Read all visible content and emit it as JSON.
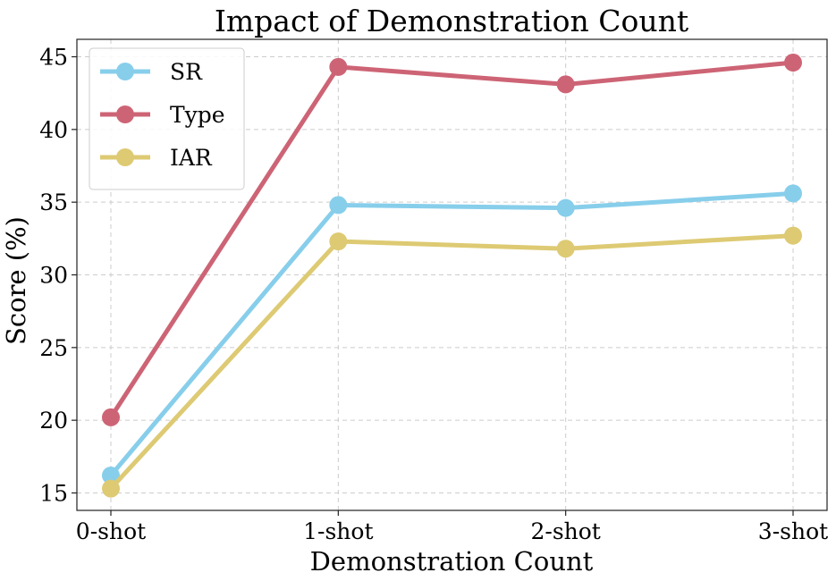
{
  "chart_data": {
    "type": "line",
    "title": "Impact of Demonstration Count",
    "xlabel": "Demonstration Count",
    "ylabel": "Score (%)",
    "categories": [
      "0-shot",
      "1-shot",
      "2-shot",
      "3-shot"
    ],
    "ylim": [
      13.8,
      46.2
    ],
    "yticks": [
      15,
      20,
      25,
      30,
      35,
      40,
      45
    ],
    "grid": true,
    "legend_position": "top-left",
    "series": [
      {
        "name": "SR",
        "color": "#87ceeb",
        "values": [
          16.2,
          34.8,
          34.6,
          35.6
        ]
      },
      {
        "name": "Type",
        "color": "#cd6475",
        "values": [
          20.2,
          44.3,
          43.1,
          44.6
        ]
      },
      {
        "name": "IAR",
        "color": "#ddca73",
        "values": [
          15.3,
          32.3,
          31.8,
          32.7
        ]
      }
    ]
  }
}
